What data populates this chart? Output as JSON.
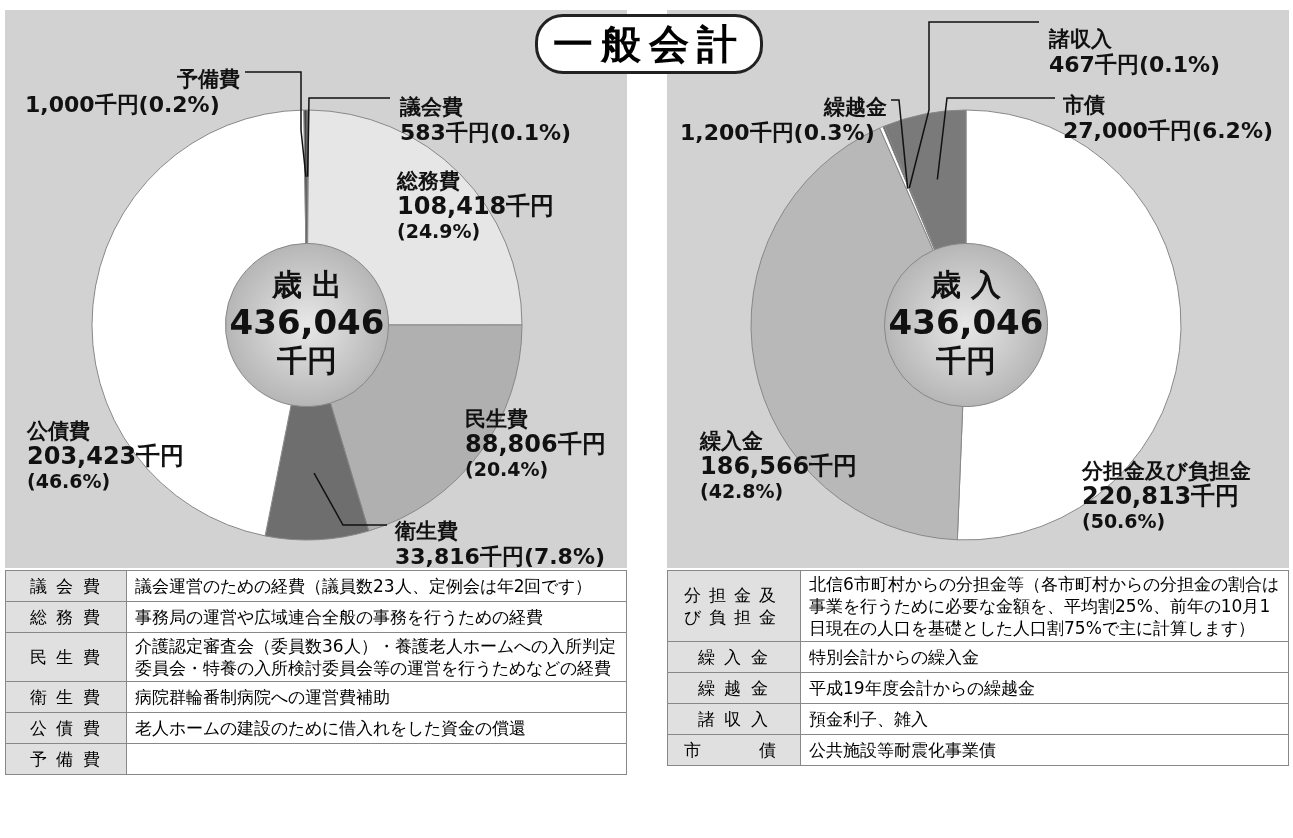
{
  "chart_data": [
    {
      "type": "donut",
      "title": "一般会計",
      "categories": [
        "議会費",
        "総務費",
        "民生費",
        "衛生費",
        "公債費",
        "予備費"
      ],
      "values": [
        583,
        108418,
        88806,
        33816,
        203423,
        1000
      ],
      "colors": [
        "#333333",
        "#e6e6e6",
        "#b0b0b0",
        "#6e6e6e",
        "#ffffff",
        "#444444"
      ],
      "value_labels": [
        "583千円(0.1%)",
        "108,418千円(24.9%)",
        "88,806千円(20.4%)",
        "33,816千円(7.8%)",
        "203,423千円(46.6%)",
        "1,000千円(0.2%)"
      ],
      "annotations": [
        "歳 出",
        "436,046",
        "千円"
      ]
    },
    {
      "type": "donut",
      "categories": [
        "分担金及び負担金",
        "繰入金",
        "繰越金",
        "諸収入",
        "市債"
      ],
      "values": [
        220813,
        186566,
        1200,
        467,
        27000
      ],
      "colors": [
        "#ffffff",
        "#b8b8b8",
        "#ffffff",
        "#444444",
        "#7a7a7a"
      ],
      "value_labels": [
        "220,813千円(50.6%)",
        "186,566千円(42.8%)",
        "1,200千円(0.3%)",
        "467千円(0.1%)",
        "27,000千円(6.2%)"
      ],
      "annotations": [
        "歳 入",
        "436,046",
        "千円"
      ]
    },
    {
      "type": "other",
      "categories": [
        "議 会 費",
        "総 務 費",
        "民 生 費",
        "衛 生 費",
        "公 債 費",
        "予 備 費"
      ],
      "annotations": [
        "議会運営のための経費（議員数23人、定例会は年2回です）",
        "事務局の運営や広域連合全般の事務を行うための経費",
        "介護認定審査会（委員数36人）・養護老人ホームへの入所判定委員会・特養の入所検討委員会等の運営を行うためなどの経費",
        "病院群輪番制病院への運営費補助",
        "老人ホームの建設のために借入れをした資金の償還",
        null
      ]
    },
    {
      "type": "other",
      "categories": [
        "分担金及び負担金",
        "繰 入 金",
        "繰 越 金",
        "諸 収 入",
        "市　　債"
      ],
      "annotations": [
        "北信6市町村からの分担金等（各市町村からの分担金の割合は事業を行うために必要な金額を、平均割25%、前年の10月1日現在の人口を基礎とした人口割75%で主に計算します）",
        "特別会計からの繰入金",
        "平成19年度会計からの繰越金",
        "預金利子、雑入",
        "公共施設等耐震化事業債"
      ]
    }
  ]
}
